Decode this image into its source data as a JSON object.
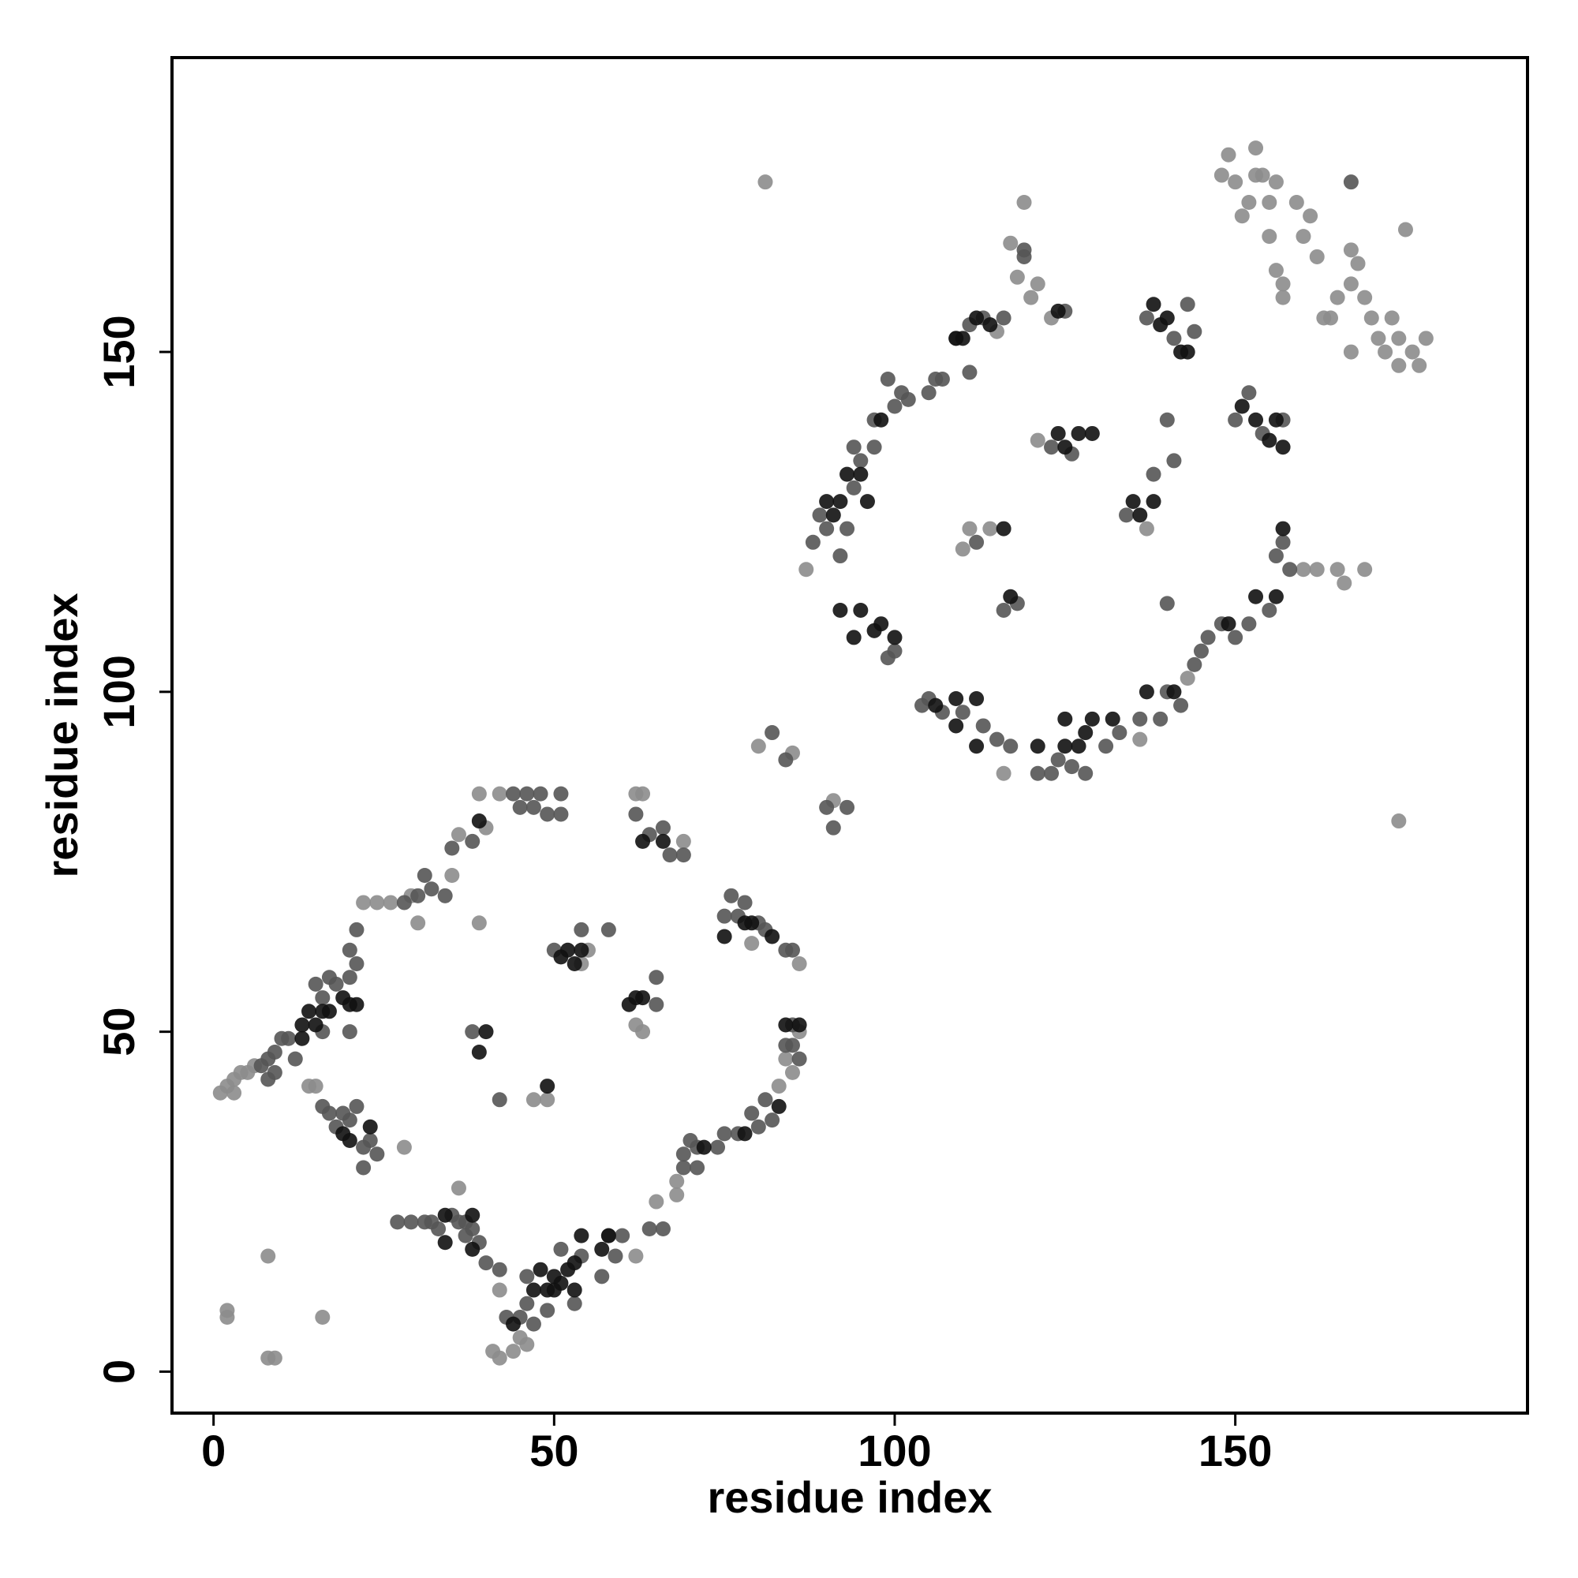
{
  "chart_data": {
    "type": "scatter",
    "xlabel": "residue index",
    "ylabel": "residue index",
    "xlim": [
      -6.1,
      192.9
    ],
    "ylim": [
      -6.1,
      193.3
    ],
    "xticks": [
      0,
      50,
      100,
      150
    ],
    "yticks": [
      0,
      50,
      100,
      150
    ],
    "series": [
      {
        "color": "#8c8c8c",
        "x": [
          1,
          2,
          3,
          3,
          4,
          5,
          6,
          2,
          2,
          8,
          8,
          9,
          16,
          22,
          24,
          26,
          30,
          39,
          40,
          39,
          42,
          62,
          63,
          69,
          86,
          79,
          65,
          68,
          68,
          62,
          41,
          42,
          42,
          44,
          45,
          46,
          81,
          174,
          80,
          85,
          91,
          87,
          119,
          117,
          118,
          120,
          121,
          123,
          148,
          149,
          150,
          151,
          152,
          153,
          153,
          154,
          155,
          155,
          156,
          156,
          157,
          159,
          160,
          161,
          162,
          163,
          164,
          165,
          167,
          167,
          167,
          168,
          169,
          170,
          171,
          172,
          173,
          174,
          174,
          175,
          176,
          177,
          178,
          157,
          162,
          165,
          169,
          166,
          160,
          116,
          137,
          121,
          136,
          143,
          36,
          28,
          14,
          15,
          84,
          85,
          83,
          54,
          55,
          62,
          63,
          86,
          47,
          49,
          35,
          36,
          29,
          115,
          114,
          110,
          111
        ],
        "y": [
          41,
          42,
          41,
          43,
          44,
          44,
          45,
          9,
          8,
          17,
          2,
          2,
          8,
          69,
          69,
          69,
          66,
          85,
          80,
          66,
          85,
          85,
          85,
          78,
          60,
          63,
          25,
          26,
          28,
          17,
          3,
          2,
          12,
          3,
          5,
          4,
          175,
          81,
          92,
          91,
          84,
          118,
          172,
          166,
          161,
          158,
          160,
          155,
          176,
          179,
          175,
          170,
          172,
          176,
          180,
          176,
          172,
          167,
          175,
          162,
          160,
          172,
          167,
          170,
          164,
          155,
          155,
          158,
          160,
          165,
          150,
          163,
          158,
          155,
          152,
          150,
          155,
          152,
          148,
          168,
          150,
          148,
          152,
          158,
          118,
          118,
          118,
          116,
          118,
          88,
          124,
          137,
          93,
          102,
          27,
          33,
          42,
          42,
          46,
          44,
          42,
          60,
          62,
          51,
          50,
          50,
          40,
          40,
          73,
          79,
          70,
          153,
          124,
          121,
          124
        ]
      },
      {
        "color": "#555555",
        "x": [
          7,
          8,
          8,
          9,
          9,
          10,
          11,
          12,
          15,
          16,
          17,
          18,
          20,
          20,
          21,
          21,
          28,
          30,
          31,
          32,
          34,
          35,
          38,
          44,
          45,
          46,
          47,
          48,
          49,
          51,
          51,
          64,
          66,
          62,
          67,
          69,
          75,
          76,
          77,
          78,
          80,
          81,
          85,
          84,
          85,
          85,
          84,
          86,
          82,
          81,
          80,
          79,
          77,
          75,
          74,
          71,
          71,
          70,
          69,
          69,
          66,
          64,
          60,
          59,
          58,
          57,
          54,
          53,
          51,
          49,
          47,
          46,
          46,
          45,
          43,
          42,
          40,
          39,
          38,
          37,
          37,
          35,
          36,
          33,
          32,
          31,
          29,
          27,
          24,
          23,
          22,
          22,
          21,
          20,
          19,
          18,
          17,
          16,
          16,
          20,
          38,
          42,
          65,
          65,
          58,
          54,
          50,
          82,
          84,
          90,
          91,
          93,
          88,
          89,
          90,
          92,
          93,
          94,
          94,
          95,
          97,
          97,
          99,
          100,
          101,
          102,
          105,
          106,
          107,
          109,
          111,
          111,
          113,
          116,
          119,
          119,
          125,
          99,
          100,
          104,
          105,
          107,
          110,
          113,
          115,
          117,
          121,
          123,
          124,
          126,
          128,
          131,
          133,
          136,
          139,
          140,
          142,
          144,
          145,
          146,
          148,
          150,
          152,
          155,
          156,
          157,
          158,
          112,
          116,
          118,
          123,
          126,
          134,
          138,
          140,
          141,
          140,
          137,
          141,
          144,
          143,
          150,
          152,
          154,
          157,
          167
        ],
        "y": [
          45,
          43,
          46,
          44,
          47,
          49,
          49,
          46,
          57,
          55,
          58,
          57,
          58,
          62,
          60,
          65,
          69,
          70,
          73,
          71,
          70,
          77,
          78,
          85,
          83,
          85,
          83,
          85,
          82,
          85,
          82,
          79,
          80,
          82,
          76,
          76,
          67,
          70,
          67,
          69,
          66,
          65,
          62,
          62,
          48,
          51,
          48,
          46,
          37,
          40,
          36,
          38,
          35,
          35,
          33,
          30,
          33,
          34,
          32,
          30,
          21,
          21,
          20,
          17,
          20,
          14,
          17,
          10,
          18,
          9,
          7,
          10,
          14,
          8,
          8,
          15,
          16,
          19,
          21,
          20,
          22,
          23,
          22,
          21,
          22,
          22,
          22,
          22,
          32,
          34,
          30,
          33,
          39,
          37,
          38,
          36,
          38,
          39,
          50,
          50,
          50,
          40,
          58,
          54,
          65,
          65,
          62,
          94,
          90,
          83,
          80,
          83,
          122,
          126,
          124,
          120,
          124,
          130,
          136,
          134,
          136,
          140,
          146,
          142,
          144,
          143,
          144,
          146,
          146,
          152,
          154,
          147,
          155,
          155,
          164,
          165,
          156,
          105,
          106,
          98,
          99,
          97,
          97,
          95,
          93,
          92,
          88,
          88,
          90,
          89,
          88,
          92,
          94,
          96,
          96,
          100,
          98,
          104,
          106,
          108,
          110,
          108,
          110,
          112,
          120,
          122,
          118,
          122,
          112,
          113,
          136,
          135,
          126,
          132,
          140,
          134,
          113,
          155,
          152,
          153,
          157,
          140,
          144,
          138,
          140,
          175
        ]
      },
      {
        "color": "#111111",
        "x": [
          13,
          13,
          14,
          15,
          16,
          17,
          19,
          20,
          21,
          39,
          19,
          20,
          23,
          34,
          34,
          38,
          38,
          44,
          47,
          48,
          49,
          50,
          50,
          51,
          52,
          53,
          53,
          54,
          57,
          58,
          63,
          66,
          75,
          78,
          79,
          82,
          84,
          86,
          83,
          78,
          72,
          39,
          40,
          49,
          51,
          52,
          53,
          54,
          61,
          62,
          63,
          90,
          91,
          92,
          93,
          95,
          96,
          98,
          109,
          110,
          112,
          114,
          124,
          92,
          94,
          95,
          97,
          98,
          100,
          106,
          109,
          109,
          112,
          112,
          121,
          125,
          125,
          127,
          128,
          129,
          132,
          137,
          141,
          149,
          153,
          156,
          157,
          116,
          117,
          124,
          125,
          127,
          129,
          135,
          136,
          138,
          138,
          139,
          140,
          142,
          143,
          151,
          153,
          155,
          156,
          157
        ],
        "y": [
          49,
          51,
          53,
          51,
          53,
          53,
          55,
          54,
          54,
          81,
          35,
          34,
          36,
          19,
          23,
          18,
          23,
          7,
          12,
          15,
          12,
          12,
          14,
          13,
          15,
          12,
          16,
          20,
          18,
          20,
          78,
          78,
          64,
          66,
          66,
          64,
          51,
          51,
          39,
          35,
          33,
          47,
          50,
          42,
          61,
          62,
          60,
          62,
          54,
          55,
          55,
          128,
          126,
          128,
          132,
          132,
          128,
          140,
          152,
          152,
          155,
          154,
          156,
          112,
          108,
          112,
          109,
          110,
          108,
          98,
          99,
          95,
          92,
          99,
          92,
          96,
          92,
          92,
          94,
          96,
          96,
          100,
          100,
          110,
          114,
          114,
          124,
          124,
          114,
          138,
          136,
          138,
          138,
          128,
          126,
          128,
          157,
          154,
          155,
          150,
          150,
          142,
          140,
          137,
          140,
          136
        ]
      }
    ]
  }
}
